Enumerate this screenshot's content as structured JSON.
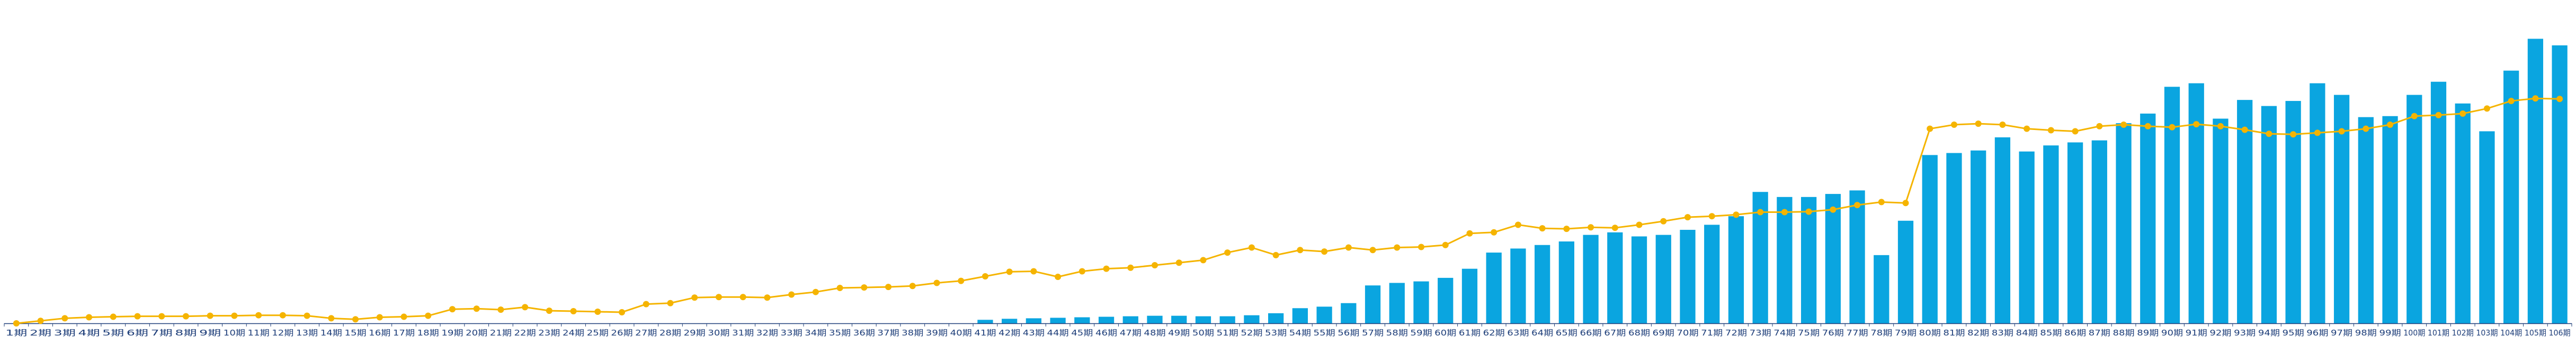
{
  "chart_data": {
    "type": "bar+line",
    "title": "",
    "xlabel": "",
    "ylabel": "",
    "categories": [
      "1期",
      "2期",
      "3期",
      "4期",
      "5期",
      "6期",
      "7期",
      "8期",
      "9期",
      "10期",
      "11期",
      "12期",
      "13期",
      "14期",
      "15期",
      "16期",
      "17期",
      "18期",
      "19期",
      "20期",
      "21期",
      "22期",
      "23期",
      "24期",
      "25期",
      "26期",
      "27期",
      "28期",
      "29期",
      "30期",
      "31期",
      "32期",
      "33期",
      "34期",
      "35期",
      "36期",
      "37期",
      "38期",
      "39期",
      "40期",
      "41期",
      "42期",
      "43期",
      "44期",
      "45期",
      "46期",
      "47期",
      "48期",
      "49期",
      "50期",
      "51期",
      "52期",
      "53期",
      "54期",
      "55期",
      "56期",
      "57期",
      "58期",
      "59期",
      "60期",
      "61期",
      "62期",
      "63期",
      "64期",
      "65期",
      "66期",
      "67期",
      "68期",
      "69期",
      "70期",
      "71期",
      "72期",
      "73期",
      "74期",
      "75期",
      "76期",
      "77期",
      "78期",
      "79期",
      "80期",
      "81期",
      "82期",
      "83期",
      "84期",
      "85期",
      "86期",
      "87期",
      "88期",
      "89期",
      "90期",
      "91期",
      "92期",
      "93期",
      "94期",
      "95期",
      "96期",
      "97期",
      "98期",
      "99期",
      "100期",
      "101期",
      "102期",
      "103期",
      "104期",
      "105期",
      "106期"
    ],
    "series": [
      {
        "type": "bar",
        "color": "#0aa5e0",
        "values": [
          0,
          0,
          0,
          0,
          0,
          0,
          0,
          0,
          0,
          0,
          0,
          0,
          0,
          0,
          0,
          0,
          0,
          0,
          0,
          0,
          0,
          0,
          0,
          0,
          0,
          0,
          0,
          0,
          0,
          0,
          0,
          0,
          0,
          0,
          0,
          0,
          0,
          0,
          0,
          0,
          0.7,
          0.9,
          1.0,
          1.1,
          1.2,
          1.3,
          1.4,
          1.5,
          1.5,
          1.4,
          1.4,
          1.6,
          2.0,
          3.0,
          3.3,
          4.0,
          7.5,
          8.0,
          8.3,
          9.0,
          10.8,
          14.0,
          14.8,
          15.5,
          16.2,
          17.5,
          18.0,
          17.2,
          17.5,
          18.5,
          19.5,
          21.2,
          26.0,
          25.0,
          25.0,
          25.6,
          26.3,
          13.5,
          20.3,
          33.3,
          33.7,
          34.2,
          36.8,
          34.0,
          35.2,
          35.8,
          36.2,
          39.6,
          41.5,
          46.8,
          47.5,
          40.5,
          44.2,
          43.0,
          44.0,
          47.5,
          45.2,
          40.8,
          41.0,
          45.2,
          47.8,
          43.5,
          38.0,
          50.0,
          56.3,
          55.0
        ]
      },
      {
        "type": "line",
        "color": "#f5b400",
        "values": [
          0,
          0.5,
          1.0,
          1.2,
          1.3,
          1.4,
          1.4,
          1.4,
          1.5,
          1.5,
          1.6,
          1.6,
          1.5,
          1.0,
          0.8,
          1.2,
          1.3,
          1.5,
          2.8,
          2.9,
          2.7,
          3.2,
          2.5,
          2.4,
          2.3,
          2.2,
          3.8,
          4.0,
          5.1,
          5.2,
          5.2,
          5.1,
          5.7,
          6.2,
          7.0,
          7.1,
          7.2,
          7.4,
          8.0,
          8.4,
          9.3,
          10.2,
          10.3,
          9.2,
          10.3,
          10.8,
          11.0,
          11.5,
          12.0,
          12.5,
          14.0,
          15.0,
          13.5,
          14.5,
          14.2,
          15.0,
          14.5,
          15.0,
          15.1,
          15.5,
          17.8,
          18.0,
          19.5,
          18.8,
          18.7,
          19.0,
          18.9,
          19.5,
          20.2,
          21.0,
          21.2,
          21.5,
          22.0,
          22.0,
          22.1,
          22.5,
          23.4,
          24.0,
          23.8,
          38.5,
          39.3,
          39.5,
          39.3,
          38.5,
          38.2,
          38.0,
          39.0,
          39.3,
          39.0,
          38.8,
          39.4,
          39.0,
          38.3,
          37.5,
          37.4,
          37.7,
          38.0,
          38.5,
          39.3,
          41.0,
          41.2,
          41.5,
          42.5,
          44.0,
          44.5,
          44.4
        ]
      }
    ],
    "ylim": [
      0,
      60
    ],
    "y_axis_visible": false,
    "grid": false,
    "legend": "none"
  }
}
